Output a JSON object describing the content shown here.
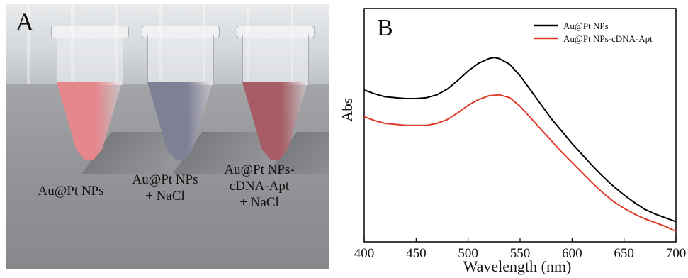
{
  "panel_a": {
    "letter": "A",
    "tubes": [
      {
        "caption_lines": [
          "Au@Pt NPs"
        ],
        "liquid_color": "#e6878c"
      },
      {
        "caption_lines": [
          "Au@Pt NPs",
          "+ NaCl"
        ],
        "liquid_color": "#7f7f95"
      },
      {
        "caption_lines": [
          "Au@Pt NPs-",
          "cDNA-Apt",
          "+ NaCl"
        ],
        "liquid_color": "#a85d66"
      }
    ]
  },
  "chart_data": {
    "panel_letter": "B",
    "type": "line",
    "xlabel": "Wavelength (nm)",
    "ylabel": "Abs",
    "xlim": [
      400,
      700
    ],
    "xticks": [
      400,
      450,
      500,
      550,
      600,
      650,
      700
    ],
    "ylim": [
      0,
      1
    ],
    "yticks_shown": false,
    "legend_position": "top-right",
    "series": [
      {
        "name": "Au@Pt NPs",
        "color": "#000000",
        "x": [
          400,
          410,
          420,
          430,
          440,
          450,
          460,
          470,
          480,
          490,
          500,
          510,
          520,
          525,
          530,
          540,
          550,
          560,
          570,
          580,
          590,
          600,
          610,
          620,
          630,
          640,
          650,
          660,
          670,
          680,
          690,
          700
        ],
        "y": [
          0.74,
          0.72,
          0.705,
          0.7,
          0.695,
          0.695,
          0.7,
          0.715,
          0.745,
          0.79,
          0.84,
          0.88,
          0.905,
          0.91,
          0.905,
          0.875,
          0.815,
          0.74,
          0.665,
          0.59,
          0.525,
          0.46,
          0.4,
          0.34,
          0.285,
          0.235,
          0.19,
          0.15,
          0.115,
          0.09,
          0.07,
          0.05
        ]
      },
      {
        "name": "Au@Pt NPs-cDNA-Apt",
        "color": "#e03a2a",
        "x": [
          400,
          410,
          420,
          430,
          440,
          450,
          460,
          470,
          480,
          490,
          500,
          510,
          520,
          530,
          540,
          550,
          560,
          570,
          580,
          590,
          600,
          610,
          620,
          630,
          640,
          650,
          660,
          670,
          680,
          690,
          700
        ],
        "y": [
          0.6,
          0.58,
          0.565,
          0.56,
          0.555,
          0.555,
          0.555,
          0.565,
          0.585,
          0.62,
          0.66,
          0.69,
          0.71,
          0.715,
          0.7,
          0.655,
          0.595,
          0.535,
          0.475,
          0.415,
          0.36,
          0.305,
          0.25,
          0.2,
          0.155,
          0.12,
          0.09,
          0.065,
          0.045,
          0.025,
          0.0
        ]
      }
    ]
  }
}
